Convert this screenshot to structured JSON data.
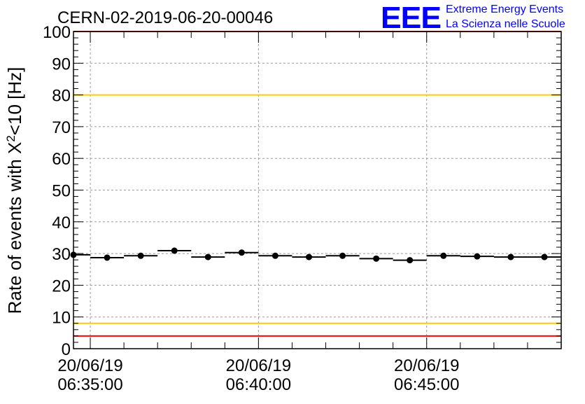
{
  "chart_data": {
    "type": "scatter",
    "title": "CERN-02-2019-06-20-00046",
    "ylabel": {
      "prefix": "Rate of events with X",
      "superscript": "2",
      "suffix": "<10 [Hz]"
    },
    "ylim": [
      0,
      100
    ],
    "y_ticks": [
      "0",
      "10",
      "20",
      "30",
      "40",
      "50",
      "60",
      "70",
      "80",
      "90",
      "100"
    ],
    "x_ticks": [
      {
        "date": "20/06/19",
        "time": "06:35:00",
        "minutes": 0
      },
      {
        "date": "20/06/19",
        "time": "06:40:00",
        "minutes": 5
      },
      {
        "date": "20/06/19",
        "time": "06:45:00",
        "minutes": 10
      }
    ],
    "xlim_minutes_from_0635": [
      -0.5,
      14.0
    ],
    "bin_width_minutes": 1.0,
    "grid": true,
    "series": [
      {
        "x_minutes": [
          -0.5,
          0.5,
          1.5,
          2.5,
          3.5,
          4.5,
          5.5,
          6.5,
          7.5,
          8.5,
          9.5,
          10.5,
          11.5,
          12.5,
          13.5
        ],
        "y": [
          29.6,
          28.7,
          29.3,
          30.9,
          28.9,
          30.3,
          29.3,
          28.9,
          29.3,
          28.4,
          27.9,
          29.3,
          29.1,
          28.9,
          28.9
        ]
      }
    ],
    "reference_lines": [
      {
        "y": 80,
        "color": "#ffcc00"
      },
      {
        "y": 8,
        "color": "#ffcc00"
      },
      {
        "y": 4,
        "color": "#ff0000"
      },
      {
        "y": 100,
        "color": "#ff0000"
      }
    ]
  },
  "logo": {
    "text": "EEE",
    "line1": "Extreme Energy Events",
    "line2": "La Scienza nelle Scuole",
    "color": "#0000ff"
  }
}
